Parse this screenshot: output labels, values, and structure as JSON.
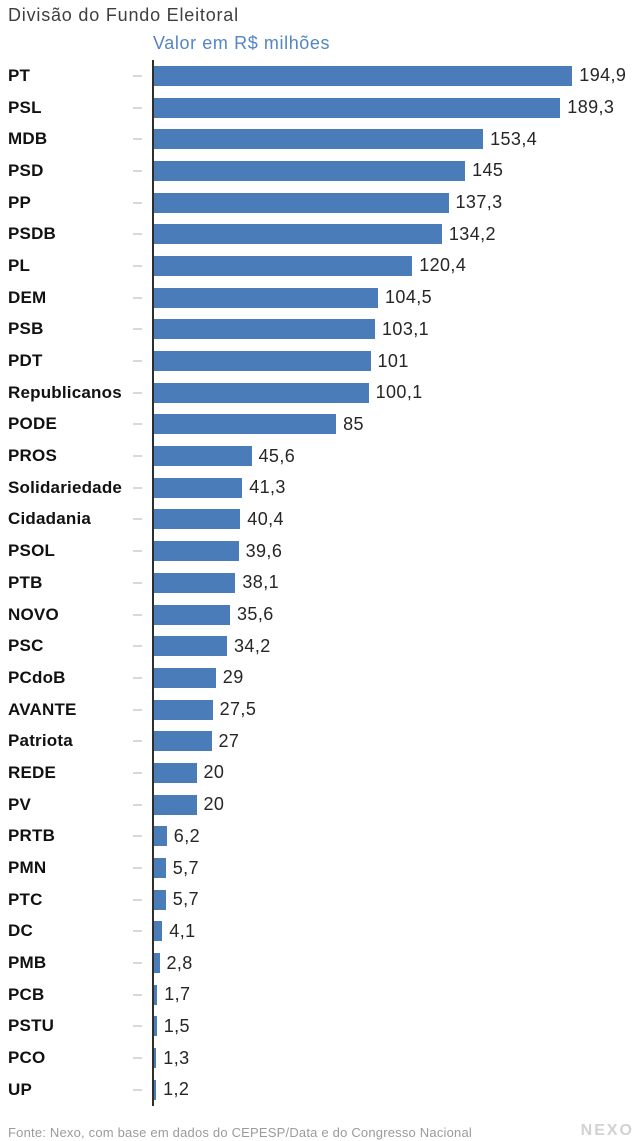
{
  "header": {
    "title": "Divisão do Fundo Eleitoral",
    "subtitle": "Valor em R$ milhões"
  },
  "chart_data": {
    "type": "bar",
    "orientation": "horizontal",
    "title": "Divisão do Fundo Eleitoral",
    "subtitle": "Valor em R$ milhões",
    "unit": "R$ milhões",
    "xlim": [
      0,
      195
    ],
    "grid": false,
    "legend": false,
    "bar_color": "#4a7cba",
    "categories": [
      "PT",
      "PSL",
      "MDB",
      "PSD",
      "PP",
      "PSDB",
      "PL",
      "DEM",
      "PSB",
      "PDT",
      "Republicanos",
      "PODE",
      "PROS",
      "Solidariedade",
      "Cidadania",
      "PSOL",
      "PTB",
      "NOVO",
      "PSC",
      "PCdoB",
      "AVANTE",
      "Patriota",
      "REDE",
      "PV",
      "PRTB",
      "PMN",
      "PTC",
      "DC",
      "PMB",
      "PCB",
      "PSTU",
      "PCO",
      "UP"
    ],
    "values": [
      194.9,
      189.3,
      153.4,
      145,
      137.3,
      134.2,
      120.4,
      104.5,
      103.1,
      101,
      100.1,
      85,
      45.6,
      41.3,
      40.4,
      39.6,
      38.1,
      35.6,
      34.2,
      29,
      27.5,
      27,
      20,
      20,
      6.2,
      5.7,
      5.7,
      4.1,
      2.8,
      1.7,
      1.5,
      1.3,
      1.2
    ],
    "value_labels": [
      "194,9",
      "189,3",
      "153,4",
      "145",
      "137,3",
      "134,2",
      "120,4",
      "104,5",
      "103,1",
      "101",
      "100,1",
      "85",
      "45,6",
      "41,3",
      "40,4",
      "39,6",
      "38,1",
      "35,6",
      "34,2",
      "29",
      "27,5",
      "27",
      "20",
      "20",
      "6,2",
      "5,7",
      "5,7",
      "4,1",
      "2,8",
      "1,7",
      "1,5",
      "1,3",
      "1,2"
    ]
  },
  "footer": {
    "source": "Fonte: Nexo, com base em dados do CEPESP/Data e do Congresso Nacional",
    "logo": "NEXO"
  },
  "colors": {
    "bar": "#4a7cba",
    "subtitle": "#5585c5",
    "axis": "#2e2e2e",
    "tick": "#d8d8d8",
    "title_text": "#3e3e3e",
    "label_text": "#111111",
    "value_text": "#262626",
    "footer_text": "#9b9b9b",
    "logo_text": "#d2d2d2"
  }
}
